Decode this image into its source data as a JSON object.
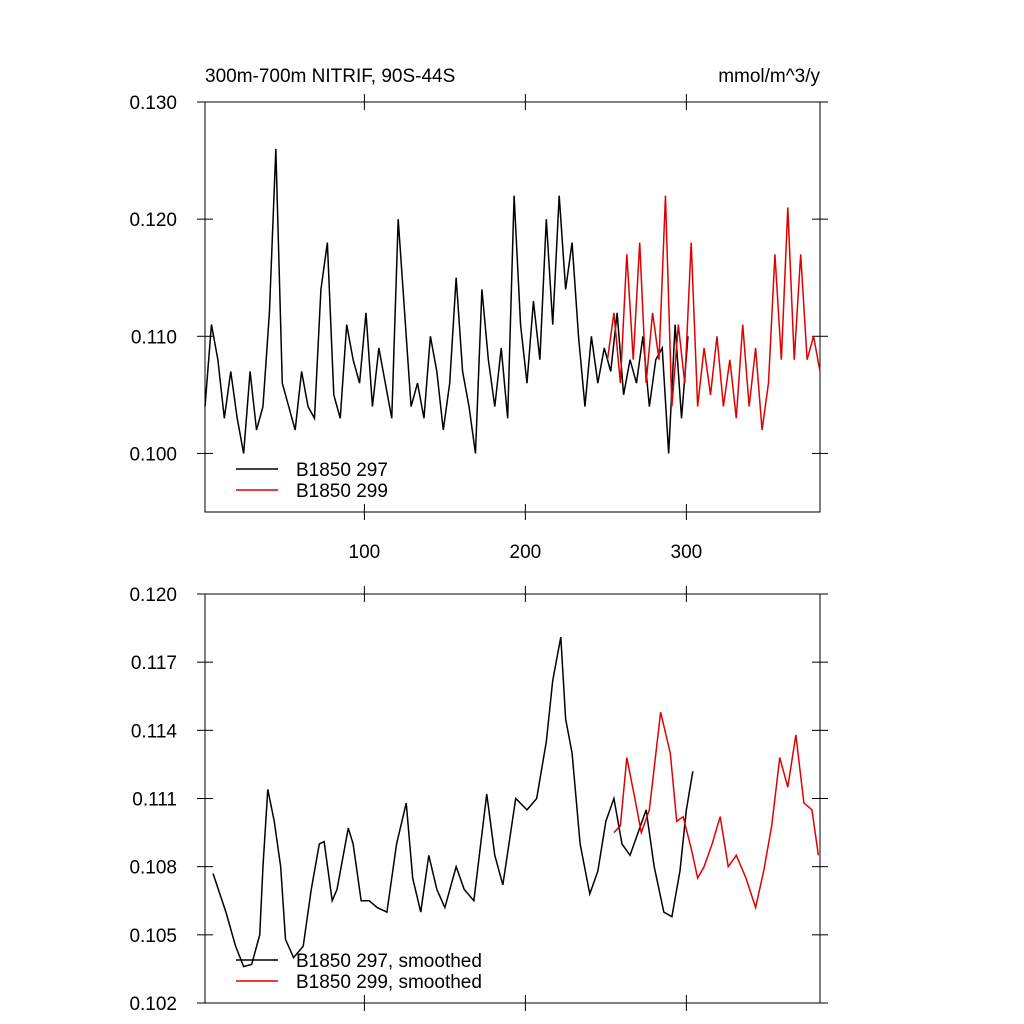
{
  "chart_data": [
    {
      "type": "line",
      "title": "300m-700m NITRIF, 90S-44S",
      "units": "mmol/m^3/y",
      "xlim": [
        1,
        383
      ],
      "xticks": [
        100,
        200,
        300
      ],
      "ylim": [
        0.095,
        0.13
      ],
      "yticks": [
        {
          "value": 0.1,
          "label": "0.100"
        },
        {
          "value": 0.11,
          "label": "0.110"
        },
        {
          "value": 0.12,
          "label": "0.120"
        },
        {
          "value": 0.13,
          "label": "0.130"
        }
      ],
      "legend": "lower-left",
      "series": [
        {
          "name": "B1850 297",
          "color": "#000000",
          "x": [
            1,
            5,
            9,
            13,
            17,
            21,
            25,
            29,
            33,
            37,
            41,
            45,
            49,
            53,
            57,
            61,
            65,
            69,
            73,
            77,
            81,
            85,
            89,
            93,
            97,
            101,
            105,
            109,
            113,
            117,
            121,
            125,
            129,
            133,
            137,
            141,
            145,
            149,
            153,
            157,
            161,
            165,
            169,
            173,
            177,
            181,
            185,
            189,
            193,
            197,
            201,
            205,
            209,
            213,
            217,
            221,
            225,
            229,
            233,
            237,
            241,
            245,
            249,
            253,
            257,
            261,
            265,
            269,
            273,
            277,
            281,
            285,
            289,
            293,
            297,
            301
          ],
          "values": [
            0.104,
            0.111,
            0.108,
            0.103,
            0.107,
            0.103,
            0.1,
            0.107,
            0.102,
            0.104,
            0.112,
            0.126,
            0.106,
            0.104,
            0.102,
            0.107,
            0.104,
            0.103,
            0.114,
            0.118,
            0.105,
            0.103,
            0.111,
            0.108,
            0.106,
            0.112,
            0.104,
            0.109,
            0.106,
            0.103,
            0.12,
            0.112,
            0.104,
            0.106,
            0.103,
            0.11,
            0.107,
            0.102,
            0.106,
            0.115,
            0.107,
            0.104,
            0.1,
            0.114,
            0.108,
            0.104,
            0.109,
            0.103,
            0.122,
            0.111,
            0.106,
            0.113,
            0.108,
            0.12,
            0.111,
            0.122,
            0.114,
            0.118,
            0.11,
            0.104,
            0.11,
            0.106,
            0.109,
            0.107,
            0.112,
            0.105,
            0.108,
            0.106,
            0.11,
            0.104,
            0.108,
            0.109,
            0.1,
            0.111,
            0.103,
            0.11
          ]
        },
        {
          "name": "B1850 299",
          "color": "#e00000",
          "x": [
            251,
            255,
            259,
            263,
            267,
            271,
            275,
            279,
            283,
            287,
            291,
            295,
            299,
            303,
            307,
            311,
            315,
            319,
            323,
            327,
            331,
            335,
            339,
            343,
            347,
            351,
            355,
            359,
            363,
            367,
            371,
            375,
            379,
            383
          ],
          "values": [
            0.108,
            0.112,
            0.106,
            0.117,
            0.108,
            0.118,
            0.106,
            0.112,
            0.108,
            0.122,
            0.104,
            0.111,
            0.106,
            0.118,
            0.104,
            0.109,
            0.105,
            0.11,
            0.104,
            0.108,
            0.103,
            0.111,
            0.104,
            0.109,
            0.102,
            0.106,
            0.117,
            0.108,
            0.121,
            0.108,
            0.117,
            0.108,
            0.11,
            0.107
          ]
        }
      ]
    },
    {
      "type": "line",
      "xlim": [
        1,
        383
      ],
      "xticks": [
        100,
        200,
        300
      ],
      "ylim": [
        0.102,
        0.12
      ],
      "yticks": [
        0.102,
        0.105,
        0.108,
        0.111,
        0.114,
        0.117,
        {
          "value": 0.12,
          "label": "0.120"
        }
      ],
      "legend": "lower-left",
      "series": [
        {
          "name": "B1850 297, smoothed",
          "color": "#000000",
          "x": [
            6,
            14,
            20,
            25,
            30,
            35,
            37,
            40,
            44,
            48,
            51,
            56,
            62,
            67,
            72,
            75,
            80,
            83,
            90,
            93,
            98,
            103,
            108,
            114,
            120,
            126,
            130,
            135,
            140,
            145,
            150,
            157,
            162,
            168,
            176,
            181,
            186,
            194,
            201,
            207,
            213,
            217,
            222,
            225,
            229,
            234,
            240,
            245,
            250,
            255,
            260,
            265,
            270,
            275,
            280,
            286,
            291,
            296,
            300,
            304
          ],
          "values": [
            0.1077,
            0.106,
            0.1045,
            0.1036,
            0.1037,
            0.105,
            0.108,
            0.1114,
            0.11,
            0.108,
            0.1048,
            0.104,
            0.1045,
            0.107,
            0.109,
            0.1091,
            0.1065,
            0.107,
            0.1097,
            0.109,
            0.1065,
            0.1065,
            0.1062,
            0.106,
            0.109,
            0.1108,
            0.1075,
            0.106,
            0.1085,
            0.107,
            0.1062,
            0.108,
            0.107,
            0.1065,
            0.1112,
            0.1085,
            0.1072,
            0.111,
            0.1105,
            0.111,
            0.1135,
            0.1162,
            0.1181,
            0.1145,
            0.113,
            0.109,
            0.1068,
            0.1078,
            0.11,
            0.111,
            0.109,
            0.1085,
            0.1095,
            0.1105,
            0.108,
            0.106,
            0.1058,
            0.1078,
            0.1105,
            0.1122
          ]
        },
        {
          "name": "B1850 299, smoothed",
          "color": "#e00000",
          "x": [
            255,
            259,
            263,
            268,
            272,
            277,
            284,
            290,
            294,
            298,
            303,
            307,
            311,
            316,
            321,
            326,
            331,
            337,
            343,
            348,
            353,
            358,
            363,
            368,
            373,
            378,
            382
          ],
          "values": [
            0.1095,
            0.1098,
            0.1128,
            0.111,
            0.1095,
            0.1105,
            0.1148,
            0.113,
            0.11,
            0.1102,
            0.1088,
            0.1075,
            0.108,
            0.109,
            0.1102,
            0.108,
            0.1085,
            0.1075,
            0.1062,
            0.1078,
            0.1098,
            0.1128,
            0.1115,
            0.1138,
            0.1108,
            0.1105,
            0.1085
          ]
        }
      ]
    }
  ]
}
